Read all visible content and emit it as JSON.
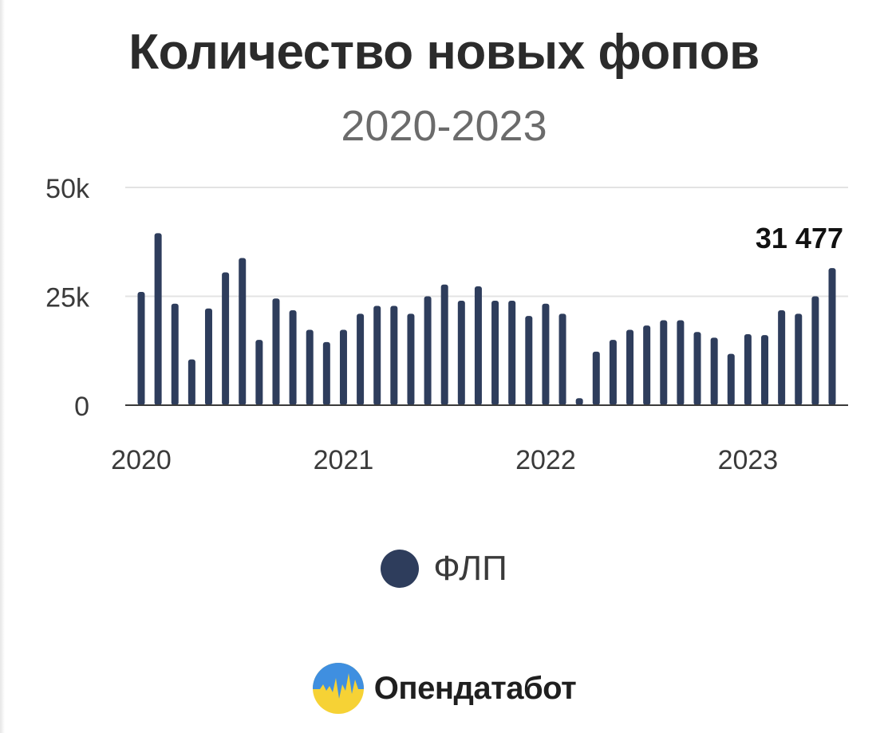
{
  "chart_data": {
    "type": "bar",
    "title": "Количество новых фопов",
    "subtitle": "2020-2023",
    "ylim": [
      0,
      50000
    ],
    "y_ticks": [
      {
        "value": 0,
        "label": "0"
      },
      {
        "value": 25000,
        "label": "25k"
      },
      {
        "value": 50000,
        "label": "50k"
      }
    ],
    "x_ticks": [
      {
        "index": 0,
        "label": "2020"
      },
      {
        "index": 12,
        "label": "2021"
      },
      {
        "index": 24,
        "label": "2022"
      },
      {
        "index": 36,
        "label": "2023"
      }
    ],
    "grid": true,
    "legend_position": "bottom",
    "series": [
      {
        "name": "ФЛП",
        "color": "#2e3d5c",
        "values": [
          26000,
          39500,
          23300,
          10500,
          22200,
          30500,
          33800,
          15000,
          24500,
          21800,
          17300,
          14500,
          17300,
          21000,
          22800,
          22800,
          21000,
          25000,
          27700,
          24000,
          27300,
          24000,
          24000,
          20500,
          23300,
          21000,
          1600,
          12300,
          15000,
          17300,
          18300,
          19500,
          19500,
          16800,
          15500,
          11800,
          16300,
          16100,
          21800,
          21000,
          25000,
          31477
        ]
      }
    ],
    "annotations": [
      {
        "index": 41,
        "label": "31 477"
      }
    ]
  },
  "brand": {
    "name": "Опендатабот",
    "logo": "opendatabot-logo",
    "logo_colors": [
      "#3f8fe0",
      "#f6d235"
    ]
  }
}
